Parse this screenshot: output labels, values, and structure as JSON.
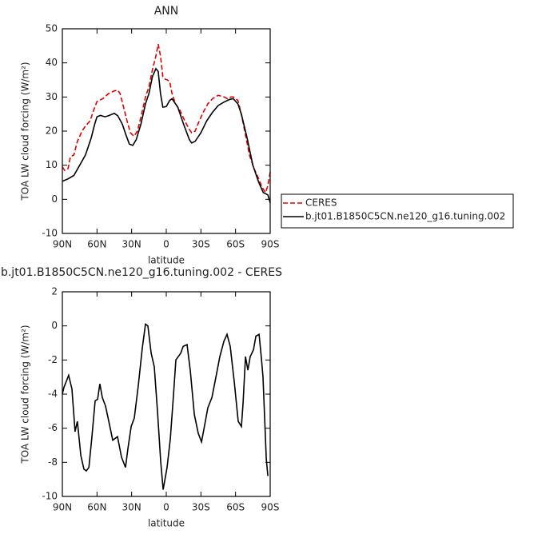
{
  "chart_data": [
    {
      "type": "line",
      "title": "ANN",
      "xlabel": "latitude",
      "ylabel": "TOA LW cloud forcing (W/m²)",
      "xlim": [
        90,
        -90
      ],
      "xticks": [
        {
          "value": 90,
          "label": "90N"
        },
        {
          "value": 60,
          "label": "60N"
        },
        {
          "value": 30,
          "label": "30N"
        },
        0,
        {
          "value": -30,
          "label": "30S"
        },
        {
          "value": -60,
          "label": "60S"
        },
        {
          "value": -90,
          "label": "90S"
        }
      ],
      "ylim": [
        -10,
        50
      ],
      "yticks": [
        -10,
        0,
        10,
        20,
        30,
        40,
        50
      ],
      "legend": "right",
      "series": [
        {
          "name": "CERES",
          "color": "#e00000",
          "style": "dashed",
          "x": [
            90,
            88,
            85,
            83,
            80,
            77,
            73,
            70,
            66,
            63,
            60,
            55,
            50,
            45,
            42,
            40,
            37,
            34,
            31,
            28,
            25,
            22,
            18,
            15,
            12,
            9,
            7,
            5,
            3,
            1,
            -1,
            -3,
            -5,
            -8,
            -12,
            -16,
            -20,
            -22,
            -25,
            -28,
            -32,
            -36,
            -40,
            -45,
            -50,
            -53,
            -56,
            -58,
            -62,
            -65,
            -68,
            -72,
            -76,
            -80,
            -83,
            -86,
            -88,
            -90
          ],
          "values": [
            9.5,
            8.5,
            9,
            12.5,
            13,
            17,
            20,
            21.5,
            23,
            26,
            28.7,
            29.5,
            31,
            31.8,
            32,
            31,
            27,
            23,
            19.5,
            18.5,
            20,
            24,
            30,
            33,
            38,
            42,
            45.5,
            42,
            36,
            35.2,
            35,
            34.5,
            31,
            28,
            26,
            23,
            20.5,
            19.5,
            20,
            22.5,
            25.5,
            28,
            29.5,
            30.5,
            30,
            29.5,
            30,
            30,
            29,
            25,
            20,
            13,
            9,
            6,
            3.5,
            2,
            4,
            8
          ]
        },
        {
          "name": "b.jt01.B1850C5CN.ne120_g16.tuning.002",
          "color": "#000000",
          "style": "solid",
          "x": [
            90,
            85,
            80,
            75,
            70,
            65,
            62,
            60,
            57,
            53,
            50,
            45,
            42,
            38,
            35,
            32,
            29,
            26,
            22,
            18,
            15,
            12,
            9,
            7,
            5,
            3,
            0,
            -3,
            -5,
            -10,
            -15,
            -20,
            -22,
            -25,
            -30,
            -35,
            -40,
            -45,
            -50,
            -55,
            -58,
            -62,
            -65,
            -70,
            -75,
            -80,
            -84,
            -88,
            -90
          ],
          "values": [
            5.3,
            6,
            7,
            10,
            13,
            18,
            22,
            24.2,
            24.6,
            24.2,
            24.5,
            25.2,
            24.5,
            22,
            19,
            16.2,
            15.8,
            17.5,
            22,
            28,
            31,
            36,
            38.3,
            37.5,
            31,
            27,
            27.2,
            29,
            29.5,
            27,
            22,
            17.5,
            16.5,
            17,
            19.5,
            23,
            25.5,
            27.5,
            28.5,
            29.3,
            29.5,
            28,
            25,
            18,
            10,
            5,
            2,
            1.3,
            -1
          ]
        }
      ]
    },
    {
      "type": "line",
      "title": "b.jt01.B1850C5CN.ne120_g16.tuning.002 - CERES",
      "xlabel": "latitude",
      "ylabel": "TOA LW cloud forcing (W/m²)",
      "xlim": [
        90,
        -90
      ],
      "xticks": [
        {
          "value": 90,
          "label": "90N"
        },
        {
          "value": 60,
          "label": "60N"
        },
        {
          "value": 30,
          "label": "30N"
        },
        0,
        {
          "value": -30,
          "label": "30S"
        },
        {
          "value": -60,
          "label": "60S"
        },
        {
          "value": -90,
          "label": "90S"
        }
      ],
      "ylim": [
        -10,
        2
      ],
      "yticks": [
        -10,
        -8,
        -6,
        -4,
        -2,
        0,
        2
      ],
      "series": [
        {
          "color": "#000000",
          "style": "solid",
          "x": [
            90,
            88.6,
            84.5,
            81.7,
            79,
            77,
            74,
            71.3,
            69.2,
            67,
            64.4,
            61.6,
            59.5,
            57.5,
            55.4,
            52.6,
            49.8,
            46.4,
            42.2,
            38.8,
            35.3,
            33.2,
            30.4,
            27.7,
            24.2,
            20.8,
            18,
            15.9,
            13.1,
            10.4,
            7.6,
            4.8,
            2.7,
            -0.7,
            -3.5,
            -6.3,
            -8.3,
            -12.5,
            -14.6,
            -18,
            -20.8,
            -24.3,
            -27.7,
            -30.5,
            -33.3,
            -36,
            -39.5,
            -43,
            -46.4,
            -49.9,
            -52.6,
            -55.4,
            -58.9,
            -62.3,
            -65.1,
            -66.5,
            -68.6,
            -70.7,
            -72.7,
            -75.5,
            -77.6,
            -80.4,
            -82.4,
            -83.8,
            -86.6,
            -88
          ],
          "values": [
            -4,
            -3.6,
            -2.9,
            -3.7,
            -6.2,
            -5.6,
            -7.6,
            -8.4,
            -8.5,
            -8.3,
            -6.5,
            -4.4,
            -4.3,
            -3.4,
            -4.2,
            -4.7,
            -5.6,
            -6.7,
            -6.5,
            -7.7,
            -8.3,
            -7.2,
            -5.9,
            -5.4,
            -3.5,
            -1.3,
            0.1,
            0,
            -1.6,
            -2.4,
            -5,
            -8,
            -9.6,
            -8.3,
            -6.6,
            -4,
            -2,
            -1.6,
            -1.2,
            -1.1,
            -2.6,
            -5.2,
            -6.3,
            -6.8,
            -5.8,
            -4.8,
            -4.2,
            -3,
            -1.8,
            -0.9,
            -0.5,
            -1.2,
            -3.3,
            -5.6,
            -5.9,
            -4.5,
            -1.8,
            -2.6,
            -1.8,
            -1.4,
            -0.6,
            -0.5,
            -1.9,
            -3,
            -7.8,
            -8.8
          ]
        }
      ]
    }
  ]
}
